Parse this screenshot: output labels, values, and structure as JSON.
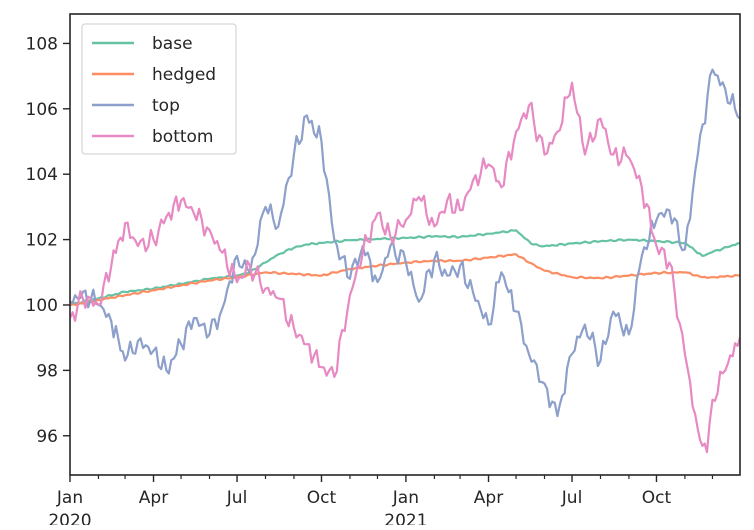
{
  "chart_data": {
    "type": "line",
    "title": "",
    "xlabel": "",
    "ylabel": "",
    "x_range": [
      "2020-01-01",
      "2021-12-31"
    ],
    "ylim": [
      94.8,
      108.9
    ],
    "y_ticks": [
      96,
      98,
      100,
      102,
      104,
      106,
      108
    ],
    "x_major_ticks": [
      {
        "date": "2020-01-01",
        "label": "Jan",
        "sublabel": "2020"
      },
      {
        "date": "2020-04-01",
        "label": "Apr",
        "sublabel": ""
      },
      {
        "date": "2020-07-01",
        "label": "Jul",
        "sublabel": ""
      },
      {
        "date": "2020-10-01",
        "label": "Oct",
        "sublabel": ""
      },
      {
        "date": "2021-01-01",
        "label": "Jan",
        "sublabel": "2021"
      },
      {
        "date": "2021-04-01",
        "label": "Apr",
        "sublabel": ""
      },
      {
        "date": "2021-07-01",
        "label": "Jul",
        "sublabel": ""
      },
      {
        "date": "2021-10-01",
        "label": "Oct",
        "sublabel": ""
      }
    ],
    "x_minor_ticks": [
      "2020-02-01",
      "2020-03-01",
      "2020-05-01",
      "2020-06-01",
      "2020-08-01",
      "2020-09-01",
      "2020-11-01",
      "2020-12-01",
      "2021-02-01",
      "2021-03-01",
      "2021-05-01",
      "2021-06-01",
      "2021-08-01",
      "2021-09-01",
      "2021-11-01",
      "2021-12-01"
    ],
    "grid": false,
    "legend_position": "top-left",
    "series": [
      {
        "name": "base",
        "color": "#66c2a5",
        "points": [
          [
            "2020-01-01",
            100.0
          ],
          [
            "2020-01-15",
            100.1
          ],
          [
            "2020-02-01",
            100.2
          ],
          [
            "2020-03-01",
            100.4
          ],
          [
            "2020-04-01",
            100.5
          ],
          [
            "2020-05-01",
            100.65
          ],
          [
            "2020-06-01",
            100.8
          ],
          [
            "2020-07-01",
            100.9
          ],
          [
            "2020-07-15",
            101.0
          ],
          [
            "2020-08-01",
            101.3
          ],
          [
            "2020-08-15",
            101.55
          ],
          [
            "2020-09-01",
            101.75
          ],
          [
            "2020-09-15",
            101.85
          ],
          [
            "2020-10-01",
            101.9
          ],
          [
            "2020-11-01",
            101.98
          ],
          [
            "2020-12-01",
            102.02
          ],
          [
            "2021-01-01",
            102.05
          ],
          [
            "2021-02-01",
            102.1
          ],
          [
            "2021-03-01",
            102.08
          ],
          [
            "2021-04-01",
            102.18
          ],
          [
            "2021-05-01",
            102.28
          ],
          [
            "2021-05-10",
            102.05
          ],
          [
            "2021-05-20",
            101.85
          ],
          [
            "2021-06-01",
            101.8
          ],
          [
            "2021-07-01",
            101.88
          ],
          [
            "2021-08-01",
            101.95
          ],
          [
            "2021-09-01",
            102.0
          ],
          [
            "2021-10-01",
            101.95
          ],
          [
            "2021-11-01",
            101.9
          ],
          [
            "2021-11-20",
            101.5
          ],
          [
            "2021-12-01",
            101.62
          ],
          [
            "2021-12-31",
            101.9
          ]
        ]
      },
      {
        "name": "hedged",
        "color": "#fc8d62",
        "points": [
          [
            "2020-01-01",
            100.0
          ],
          [
            "2020-01-15",
            100.05
          ],
          [
            "2020-02-01",
            100.15
          ],
          [
            "2020-03-01",
            100.3
          ],
          [
            "2020-04-01",
            100.45
          ],
          [
            "2020-05-01",
            100.6
          ],
          [
            "2020-06-01",
            100.75
          ],
          [
            "2020-07-01",
            100.85
          ],
          [
            "2020-08-01",
            101.0
          ],
          [
            "2020-09-01",
            100.95
          ],
          [
            "2020-10-01",
            100.9
          ],
          [
            "2020-11-01",
            101.1
          ],
          [
            "2020-12-01",
            101.2
          ],
          [
            "2021-01-01",
            101.3
          ],
          [
            "2021-02-01",
            101.35
          ],
          [
            "2021-03-01",
            101.35
          ],
          [
            "2021-04-01",
            101.45
          ],
          [
            "2021-05-01",
            101.55
          ],
          [
            "2021-05-15",
            101.3
          ],
          [
            "2021-06-01",
            101.05
          ],
          [
            "2021-07-01",
            100.85
          ],
          [
            "2021-08-01",
            100.82
          ],
          [
            "2021-09-01",
            100.9
          ],
          [
            "2021-10-01",
            100.98
          ],
          [
            "2021-11-01",
            101.0
          ],
          [
            "2021-11-20",
            100.85
          ],
          [
            "2021-12-01",
            100.85
          ],
          [
            "2021-12-31",
            100.9
          ]
        ]
      },
      {
        "name": "top",
        "color": "#8da0cb",
        "points": [
          [
            "2020-01-01",
            100.1
          ],
          [
            "2020-01-15",
            100.4
          ],
          [
            "2020-02-01",
            100.0
          ],
          [
            "2020-02-15",
            99.5
          ],
          [
            "2020-03-01",
            98.3
          ],
          [
            "2020-03-15",
            98.9
          ],
          [
            "2020-04-01",
            98.6
          ],
          [
            "2020-04-15",
            98.0
          ],
          [
            "2020-05-01",
            98.8
          ],
          [
            "2020-05-15",
            99.6
          ],
          [
            "2020-06-01",
            99.1
          ],
          [
            "2020-06-15",
            99.9
          ],
          [
            "2020-07-01",
            101.5
          ],
          [
            "2020-07-15",
            101.0
          ],
          [
            "2020-08-01",
            103.0
          ],
          [
            "2020-08-15",
            102.4
          ],
          [
            "2020-09-01",
            104.6
          ],
          [
            "2020-09-15",
            105.8
          ],
          [
            "2020-10-01",
            105.0
          ],
          [
            "2020-10-15",
            102.0
          ],
          [
            "2020-11-01",
            100.8
          ],
          [
            "2020-11-15",
            101.8
          ],
          [
            "2020-12-01",
            100.7
          ],
          [
            "2020-12-15",
            101.8
          ],
          [
            "2021-01-01",
            101.3
          ],
          [
            "2021-01-15",
            100.1
          ],
          [
            "2021-02-01",
            101.4
          ],
          [
            "2021-02-15",
            100.9
          ],
          [
            "2021-03-01",
            101.2
          ],
          [
            "2021-03-15",
            100.4
          ],
          [
            "2021-04-01",
            99.4
          ],
          [
            "2021-04-15",
            101.0
          ],
          [
            "2021-05-01",
            99.8
          ],
          [
            "2021-05-15",
            98.5
          ],
          [
            "2021-06-01",
            97.6
          ],
          [
            "2021-06-15",
            96.6
          ],
          [
            "2021-07-01",
            98.5
          ],
          [
            "2021-07-15",
            99.4
          ],
          [
            "2021-08-01",
            98.3
          ],
          [
            "2021-08-15",
            99.8
          ],
          [
            "2021-09-01",
            99.1
          ],
          [
            "2021-09-15",
            101.5
          ],
          [
            "2021-10-01",
            102.6
          ],
          [
            "2021-10-15",
            102.9
          ],
          [
            "2021-11-01",
            101.7
          ],
          [
            "2021-11-15",
            104.6
          ],
          [
            "2021-12-01",
            107.2
          ],
          [
            "2021-12-15",
            106.6
          ],
          [
            "2021-12-31",
            105.7
          ]
        ]
      },
      {
        "name": "bottom",
        "color": "#e78ac3",
        "points": [
          [
            "2020-01-01",
            99.6
          ],
          [
            "2020-01-15",
            100.2
          ],
          [
            "2020-02-01",
            100.0
          ],
          [
            "2020-02-15",
            101.2
          ],
          [
            "2020-03-01",
            102.5
          ],
          [
            "2020-03-15",
            101.8
          ],
          [
            "2020-04-01",
            102.0
          ],
          [
            "2020-04-15",
            102.7
          ],
          [
            "2020-05-01",
            103.2
          ],
          [
            "2020-05-15",
            102.8
          ],
          [
            "2020-06-01",
            102.3
          ],
          [
            "2020-06-15",
            101.6
          ],
          [
            "2020-07-01",
            100.7
          ],
          [
            "2020-07-15",
            101.2
          ],
          [
            "2020-08-01",
            100.5
          ],
          [
            "2020-08-15",
            100.2
          ],
          [
            "2020-09-01",
            99.3
          ],
          [
            "2020-09-15",
            98.8
          ],
          [
            "2020-10-01",
            98.1
          ],
          [
            "2020-10-15",
            97.8
          ],
          [
            "2020-11-01",
            100.3
          ],
          [
            "2020-11-15",
            101.6
          ],
          [
            "2020-12-01",
            102.8
          ],
          [
            "2020-12-15",
            102.1
          ],
          [
            "2021-01-01",
            102.6
          ],
          [
            "2021-01-15",
            103.3
          ],
          [
            "2021-02-01",
            102.4
          ],
          [
            "2021-02-15",
            103.2
          ],
          [
            "2021-03-01",
            102.9
          ],
          [
            "2021-03-15",
            103.8
          ],
          [
            "2021-04-01",
            104.3
          ],
          [
            "2021-04-15",
            103.6
          ],
          [
            "2021-05-01",
            105.3
          ],
          [
            "2021-05-15",
            106.1
          ],
          [
            "2021-06-01",
            104.6
          ],
          [
            "2021-06-15",
            105.3
          ],
          [
            "2021-07-01",
            106.8
          ],
          [
            "2021-07-15",
            104.6
          ],
          [
            "2021-08-01",
            105.7
          ],
          [
            "2021-08-15",
            104.6
          ],
          [
            "2021-09-01",
            104.5
          ],
          [
            "2021-09-15",
            103.6
          ],
          [
            "2021-10-01",
            101.8
          ],
          [
            "2021-10-15",
            101.3
          ],
          [
            "2021-11-01",
            98.5
          ],
          [
            "2021-11-15",
            96.2
          ],
          [
            "2021-11-25",
            95.5
          ],
          [
            "2021-12-01",
            97.1
          ],
          [
            "2021-12-15",
            98.0
          ],
          [
            "2021-12-31",
            99.0
          ]
        ]
      }
    ]
  }
}
